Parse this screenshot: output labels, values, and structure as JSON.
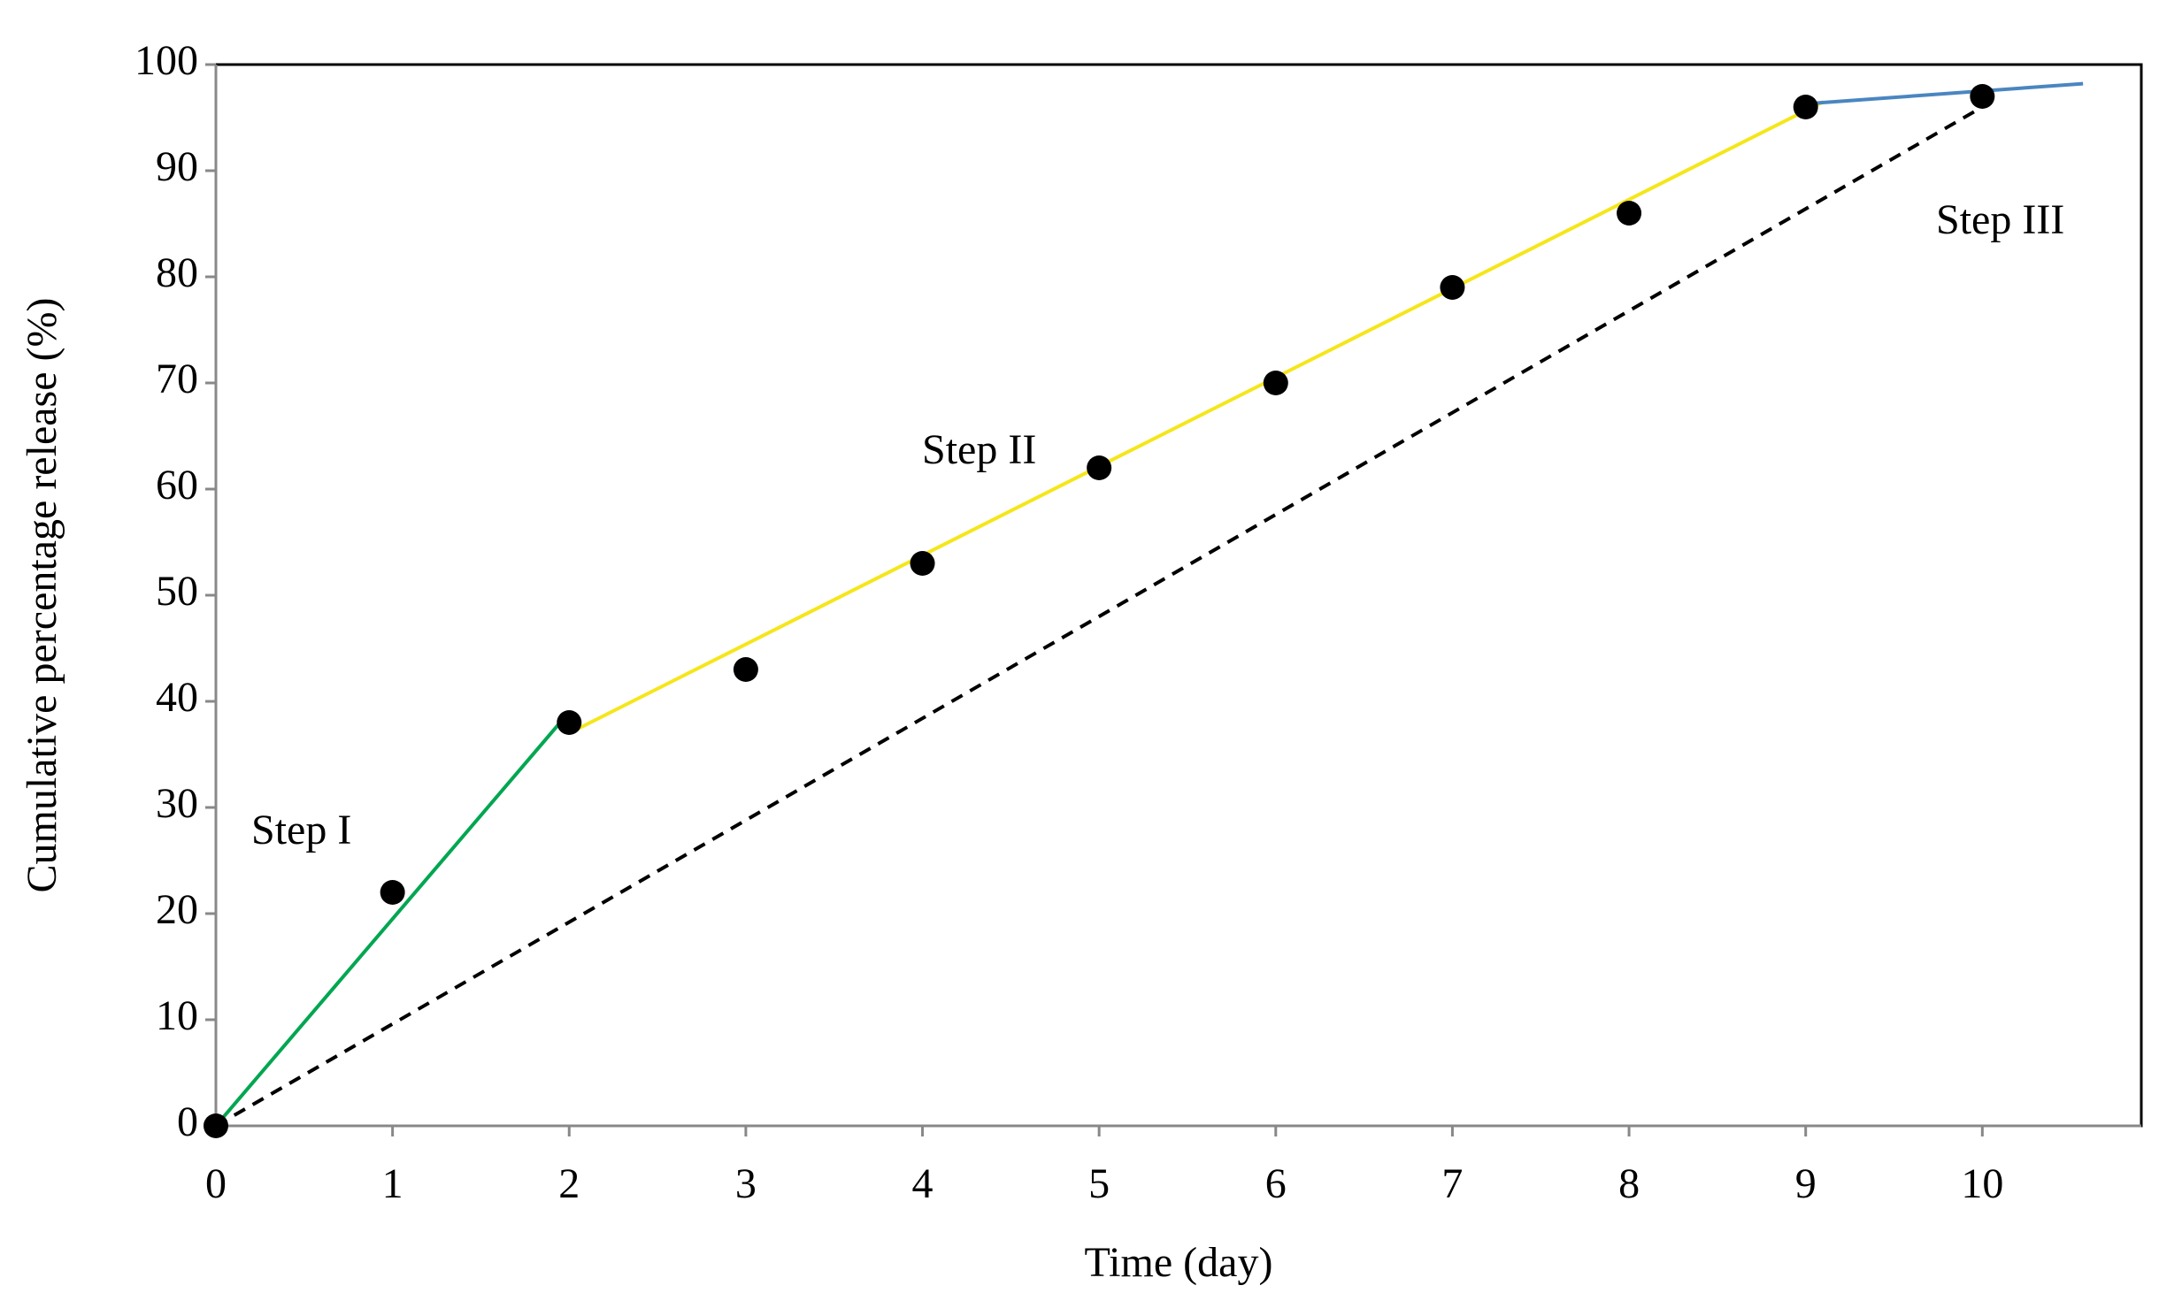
{
  "chart_data": {
    "type": "scatter",
    "x_label": "Time (day)",
    "y_label": "Cumulative percentage release (%)",
    "xlim": [
      0,
      10.9
    ],
    "ylim": [
      0,
      100
    ],
    "xticks": [
      0,
      1,
      2,
      3,
      4,
      5,
      6,
      7,
      8,
      9,
      10
    ],
    "yticks": [
      0,
      10,
      20,
      30,
      40,
      50,
      60,
      70,
      80,
      90,
      100
    ],
    "series": [
      {
        "mode": "markers",
        "color": "#000000",
        "x": [
          0,
          1,
          2,
          3,
          4,
          5,
          6,
          7,
          8,
          9,
          10
        ],
        "values": [
          0,
          22,
          38,
          43,
          53,
          62,
          70,
          79,
          86,
          96,
          97
        ]
      },
      {
        "mode": "lines",
        "color": "#00a651",
        "dash": false,
        "x": [
          0,
          2
        ],
        "values": [
          0,
          39
        ]
      },
      {
        "mode": "lines",
        "color": "#f5e61a",
        "dash": false,
        "x": [
          2,
          9.1
        ],
        "values": [
          37,
          96.5
        ]
      },
      {
        "mode": "lines",
        "color": "#4a86c0",
        "dash": false,
        "x": [
          9,
          10.57
        ],
        "values": [
          96.3,
          98.2
        ]
      },
      {
        "mode": "lines",
        "color": "#000000",
        "dash": true,
        "x": [
          0,
          10
        ],
        "values": [
          0,
          96
        ]
      }
    ],
    "annotations": [
      "Step I",
      "Step II",
      "Step III"
    ]
  }
}
